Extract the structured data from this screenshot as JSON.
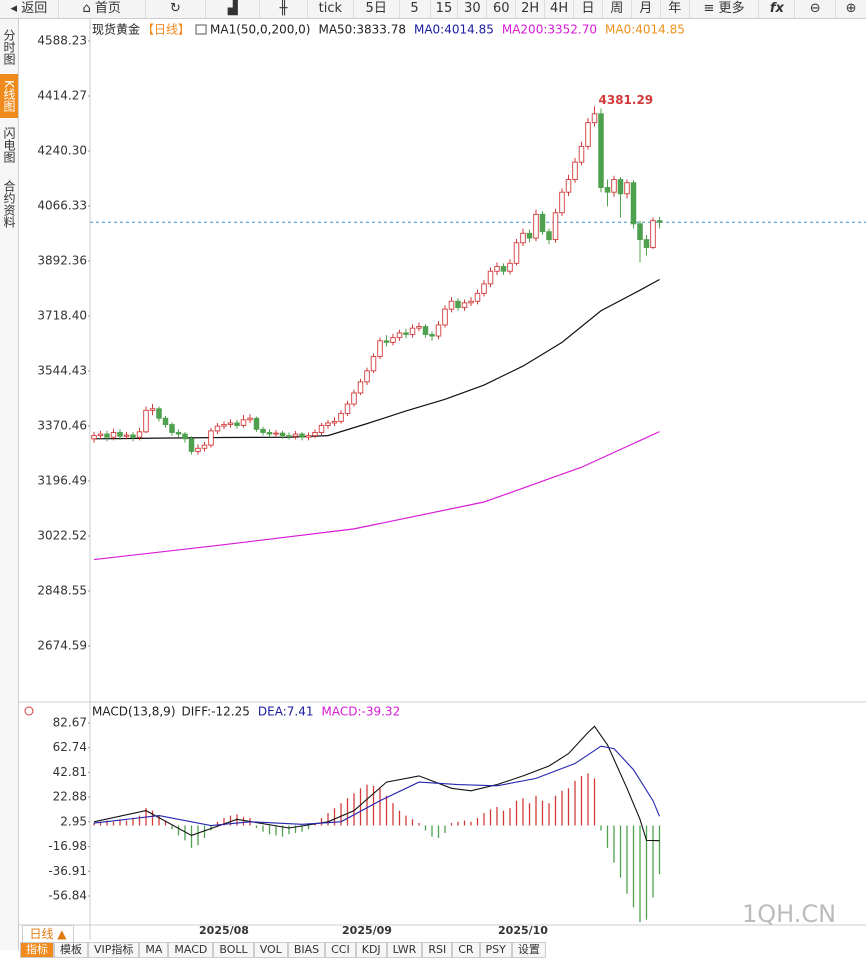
{
  "toolbar": [
    "返回",
    "首页",
    "tick",
    "5日",
    "5",
    "15",
    "30",
    "60",
    "2H",
    "4H",
    "日",
    "周",
    "月",
    "年",
    "更多"
  ],
  "sidebar": [
    "分时图",
    "K线图",
    "闪电图",
    "合约资料"
  ],
  "bottom": {
    "period": "日线 ▲",
    "tabs": [
      "指标",
      "模板",
      "VIP指标",
      "MA",
      "MACD",
      "BOLL",
      "VOL",
      "BIAS",
      "CCI",
      "KDJ",
      "LWR",
      "RSI",
      "CR",
      "PSY",
      "设置"
    ],
    "watermark": "1QH.CN"
  },
  "chart_data": [
    {
      "type": "candlestick",
      "title": "现货黄金",
      "subtitle": "【日线】",
      "legend": [
        {
          "label": "MA1(50,0,200,0)",
          "color": "#222222"
        },
        {
          "label": "MA50:3833.78",
          "color": "#222222"
        },
        {
          "label": "MA0:4014.85",
          "color": "#1c1ca0"
        },
        {
          "label": "MA200:3352.70",
          "color": "#d81bd8"
        },
        {
          "label": "MA0:4014.85",
          "color": "#f0901a"
        }
      ],
      "open": [
        3330,
        3340,
        3345,
        3335,
        3350,
        3338,
        3342,
        3335,
        3352,
        3420,
        3425,
        3395,
        3375,
        3350,
        3345,
        3330,
        3290,
        3300,
        3310,
        3355,
        3370,
        3375,
        3380,
        3372,
        3390,
        3395,
        3360,
        3350,
        3345,
        3348,
        3340,
        3338,
        3345,
        3335,
        3340,
        3350,
        3372,
        3380,
        3385,
        3410,
        3440,
        3475,
        3510,
        3545,
        3590,
        3640,
        3635,
        3650,
        3665,
        3660,
        3680,
        3685,
        3660,
        3655,
        3690,
        3740,
        3765,
        3745,
        3760,
        3765,
        3790,
        3820,
        3860,
        3875,
        3860,
        3885,
        3950,
        3980,
        3965,
        4040,
        3985,
        3960,
        4045,
        4110,
        4150,
        4205,
        4255,
        4330,
        4358,
        4125,
        4110,
        4150,
        4105,
        4140,
        4010,
        3960,
        3935,
        4020
      ],
      "high": [
        3352,
        3355,
        3356,
        3362,
        3360,
        3352,
        3351,
        3365,
        3432,
        3440,
        3432,
        3402,
        3382,
        3360,
        3352,
        3338,
        3312,
        3320,
        3365,
        3380,
        3385,
        3392,
        3390,
        3405,
        3408,
        3400,
        3368,
        3360,
        3358,
        3355,
        3350,
        3355,
        3352,
        3350,
        3360,
        3380,
        3390,
        3398,
        3420,
        3450,
        3485,
        3520,
        3555,
        3600,
        3650,
        3658,
        3662,
        3675,
        3678,
        3692,
        3698,
        3692,
        3670,
        3702,
        3752,
        3778,
        3775,
        3770,
        3778,
        3802,
        3832,
        3872,
        3888,
        3885,
        3898,
        3962,
        3995,
        3992,
        4055,
        4050,
        3995,
        4058,
        4122,
        4165,
        4218,
        4270,
        4345,
        4381.29,
        4375,
        4150,
        4162,
        4158,
        4150,
        4148,
        4020,
        3975,
        4030,
        4032
      ],
      "low": [
        3318,
        3328,
        3322,
        3325,
        3326,
        3328,
        3322,
        3325,
        3348,
        3405,
        3385,
        3365,
        3340,
        3335,
        3318,
        3280,
        3280,
        3290,
        3302,
        3345,
        3360,
        3365,
        3362,
        3365,
        3380,
        3352,
        3340,
        3335,
        3335,
        3330,
        3328,
        3328,
        3325,
        3325,
        3332,
        3342,
        3362,
        3370,
        3378,
        3402,
        3432,
        3468,
        3500,
        3538,
        3582,
        3622,
        3625,
        3640,
        3648,
        3650,
        3670,
        3650,
        3640,
        3645,
        3682,
        3730,
        3735,
        3735,
        3750,
        3755,
        3780,
        3810,
        3848,
        3848,
        3850,
        3878,
        3940,
        3952,
        3955,
        3975,
        3945,
        3950,
        4035,
        4098,
        4140,
        4195,
        4245,
        4318,
        4110,
        4065,
        4095,
        4030,
        4090,
        3995,
        3888,
        3910,
        3930,
        3995
      ],
      "close": [
        3340,
        3345,
        3335,
        3350,
        3338,
        3342,
        3335,
        3352,
        3420,
        3425,
        3395,
        3375,
        3350,
        3345,
        3330,
        3290,
        3300,
        3310,
        3355,
        3370,
        3375,
        3380,
        3372,
        3390,
        3395,
        3360,
        3350,
        3345,
        3348,
        3340,
        3338,
        3345,
        3335,
        3340,
        3350,
        3372,
        3380,
        3385,
        3410,
        3440,
        3475,
        3510,
        3545,
        3590,
        3640,
        3635,
        3650,
        3665,
        3660,
        3680,
        3685,
        3660,
        3655,
        3690,
        3740,
        3765,
        3745,
        3760,
        3765,
        3790,
        3820,
        3860,
        3875,
        3860,
        3885,
        3950,
        3980,
        3965,
        4040,
        3985,
        3960,
        4045,
        4110,
        4150,
        4205,
        4255,
        4330,
        4358,
        4125,
        4110,
        4150,
        4105,
        4140,
        4010,
        3960,
        3935,
        4020,
        4014.85
      ],
      "up_color": "#d23a3a",
      "down_color": "#4fa04f",
      "lines": [
        {
          "color": "#111111",
          "x": [
            0,
            10,
            20,
            30,
            36,
            42,
            48,
            54,
            60,
            66,
            72,
            78,
            84,
            87
          ],
          "values": [
            3330,
            3332,
            3334,
            3335,
            3340,
            3378,
            3418,
            3455,
            3500,
            3560,
            3635,
            3735,
            3800,
            3833.78
          ]
        },
        {
          "color": "#d81bd8",
          "x": [
            0,
            20,
            40,
            60,
            75,
            87
          ],
          "values": [
            2948,
            2995,
            3045,
            3130,
            3240,
            3352.7
          ]
        }
      ],
      "reference_line": {
        "value": 4014.85,
        "color": "#3a8fd0"
      },
      "ylim": [
        2503.8,
        4654.65
      ],
      "yticks": [
        2674.59,
        2848.55,
        3022.52,
        3196.49,
        3370.46,
        3544.43,
        {
          "value": 3718.4,
          "label": "3718.40"
        },
        3892.36,
        4066.33,
        {
          "value": 4240.3,
          "label": "4240.30"
        },
        4414.27,
        4588.23
      ]
    },
    {
      "type": "macd",
      "title": "MACD(13,8,9)",
      "legend": [
        {
          "label": "DIFF:-12.25",
          "color": "#222222"
        },
        {
          "label": "DEA:7.41",
          "color": "#1c1ca0"
        },
        {
          "label": "MACD:-39.32",
          "color": "#d81bd8"
        }
      ],
      "categories": [
        null,
        null,
        null,
        null,
        null,
        null,
        null,
        null,
        null,
        null,
        null,
        null,
        null,
        null,
        null,
        null,
        null,
        null,
        null,
        null,
        "2025/08",
        null,
        null,
        null,
        null,
        null,
        null,
        null,
        null,
        null,
        null,
        null,
        null,
        null,
        null,
        null,
        null,
        null,
        null,
        null,
        null,
        null,
        "2025/09",
        null,
        null,
        null,
        null,
        null,
        null,
        null,
        null,
        null,
        null,
        null,
        null,
        null,
        null,
        null,
        null,
        null,
        null,
        null,
        null,
        null,
        null,
        null,
        "2025/10",
        null,
        null,
        null,
        null,
        null,
        null,
        null,
        null,
        null,
        null,
        null,
        null,
        null,
        null,
        null,
        null,
        null,
        null,
        null,
        null,
        null
      ],
      "series": [
        {
          "color": "#111111",
          "x": [
            0,
            8,
            15,
            22,
            30,
            36,
            40,
            45,
            50,
            55,
            58,
            62,
            66,
            70,
            73,
            76,
            77,
            79,
            82,
            84,
            85,
            87
          ],
          "values": [
            3,
            12,
            -8,
            5,
            -2,
            3,
            12,
            35,
            40,
            30,
            28,
            33,
            40,
            48,
            58,
            75,
            80,
            65,
            30,
            5,
            -12,
            -12.25
          ]
        },
        {
          "color": "#2424b0",
          "x": [
            0,
            10,
            18,
            24,
            32,
            38,
            44,
            50,
            56,
            62,
            68,
            74,
            78,
            80,
            83,
            86,
            87
          ],
          "values": [
            2,
            8,
            0,
            3,
            1,
            3,
            20,
            35,
            33,
            32,
            38,
            50,
            64,
            62,
            45,
            20,
            7.41
          ]
        }
      ],
      "histogram": [
        2,
        3,
        4,
        3,
        5,
        4,
        6,
        8,
        14,
        12,
        8,
        4,
        -3,
        -8,
        -12,
        -18,
        -16,
        -10,
        -4,
        3,
        6,
        8,
        9,
        7,
        6,
        -2,
        -5,
        -7,
        -8,
        -9,
        -7,
        -6,
        -5,
        -3,
        2,
        6,
        10,
        14,
        18,
        22,
        26,
        30,
        33,
        32,
        30,
        24,
        18,
        12,
        8,
        5,
        2,
        -4,
        -9,
        -10,
        -6,
        2,
        3,
        4,
        3,
        6,
        10,
        13,
        15,
        12,
        14,
        20,
        22,
        18,
        24,
        20,
        18,
        24,
        28,
        30,
        36,
        40,
        42,
        38,
        -4,
        -18,
        -30,
        -42,
        -55,
        -66,
        -78,
        -76,
        -58,
        -39.32
      ],
      "up_color": "#d23a3a",
      "down_color": "#4fa04f",
      "ylim": [
        -80.23,
        89.12
      ],
      "yticks": [
        -56.84,
        -36.91,
        -16.98,
        2.95,
        22.88,
        42.81,
        62.74,
        82.67
      ]
    }
  ]
}
